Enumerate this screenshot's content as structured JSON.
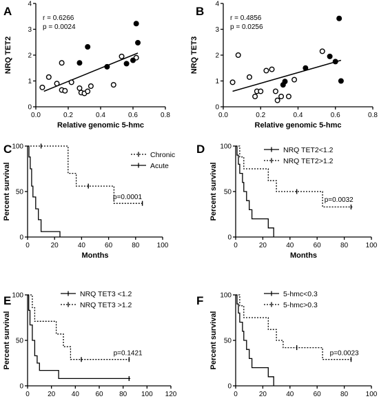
{
  "chart_data": [
    {
      "panel": "A",
      "type": "scatter",
      "xlabel": "Relative genomic 5-hmc",
      "ylabel": "NRQ TET2",
      "xlim": [
        0,
        0.8
      ],
      "ylim": [
        0,
        4
      ],
      "xticks": [
        "0.0",
        "0.2",
        "0.4",
        "0.6",
        "0.8"
      ],
      "yticks": [
        "0",
        "1",
        "2",
        "3",
        "4"
      ],
      "annotations": [
        "r = 0.6266",
        "p = 0.0024"
      ],
      "series": [
        {
          "marker": "open-circle",
          "points": [
            [
              0.04,
              0.75
            ],
            [
              0.08,
              1.15
            ],
            [
              0.13,
              0.9
            ],
            [
              0.16,
              1.7
            ],
            [
              0.16,
              0.65
            ],
            [
              0.18,
              0.62
            ],
            [
              0.22,
              0.95
            ],
            [
              0.27,
              0.72
            ],
            [
              0.28,
              0.55
            ],
            [
              0.3,
              0.52
            ],
            [
              0.32,
              0.6
            ],
            [
              0.34,
              0.8
            ],
            [
              0.48,
              0.85
            ],
            [
              0.53,
              1.95
            ],
            [
              0.62,
              1.9
            ]
          ]
        },
        {
          "marker": "filled-circle",
          "points": [
            [
              0.27,
              1.7
            ],
            [
              0.32,
              2.32
            ],
            [
              0.44,
              1.55
            ],
            [
              0.56,
              1.67
            ],
            [
              0.6,
              1.8
            ],
            [
              0.62,
              3.22
            ],
            [
              0.63,
              2.48
            ]
          ]
        }
      ],
      "trendline": [
        [
          0.05,
          0.6
        ],
        [
          0.63,
          2.08
        ]
      ]
    },
    {
      "panel": "B",
      "type": "scatter",
      "xlabel": "Relative genomic 5-hmc",
      "ylabel": "NRQ TET3",
      "xlim": [
        0,
        0.8
      ],
      "ylim": [
        0,
        4
      ],
      "xticks": [
        "0.0",
        "0.2",
        "0.4",
        "0.6",
        "0.8"
      ],
      "yticks": [
        "0",
        "1",
        "2",
        "3",
        "4"
      ],
      "annotations": [
        "r = 0.4856",
        "p = 0.0256"
      ],
      "series": [
        {
          "marker": "open-circle",
          "points": [
            [
              0.05,
              0.95
            ],
            [
              0.08,
              2.0
            ],
            [
              0.14,
              1.15
            ],
            [
              0.17,
              0.4
            ],
            [
              0.18,
              0.6
            ],
            [
              0.2,
              0.6
            ],
            [
              0.23,
              1.4
            ],
            [
              0.26,
              1.45
            ],
            [
              0.28,
              0.6
            ],
            [
              0.29,
              0.25
            ],
            [
              0.31,
              0.4
            ],
            [
              0.35,
              0.4
            ],
            [
              0.38,
              1.05
            ],
            [
              0.53,
              2.15
            ]
          ]
        },
        {
          "marker": "filled-circle",
          "points": [
            [
              0.32,
              0.85
            ],
            [
              0.33,
              0.98
            ],
            [
              0.44,
              1.5
            ],
            [
              0.57,
              1.95
            ],
            [
              0.6,
              1.75
            ],
            [
              0.62,
              3.42
            ],
            [
              0.63,
              1.0
            ]
          ]
        }
      ],
      "trendline": [
        [
          0.05,
          0.6
        ],
        [
          0.63,
          1.8
        ]
      ]
    },
    {
      "panel": "C",
      "type": "line",
      "xlabel": "Months",
      "ylabel": "Percent survival",
      "xlim": [
        0,
        100
      ],
      "ylim": [
        0,
        100
      ],
      "xticks": [
        "0",
        "20",
        "40",
        "60",
        "80",
        "100"
      ],
      "yticks": [
        "0",
        "50",
        "100"
      ],
      "annotations": [
        "p=0.0001"
      ],
      "legend_position": "top-right",
      "series": [
        {
          "name": "Chronic",
          "style": "dotted",
          "steps": [
            [
              0,
              100
            ],
            [
              30,
              100
            ],
            [
              30,
              70
            ],
            [
              36,
              70
            ],
            [
              36,
              56
            ],
            [
              64,
              56
            ],
            [
              64,
              37
            ],
            [
              86,
              37
            ]
          ],
          "censored": [
            [
              10,
              100
            ],
            [
              45,
              56
            ],
            [
              85,
              37
            ]
          ]
        },
        {
          "name": "Acute",
          "style": "solid",
          "steps": [
            [
              0,
              100
            ],
            [
              1,
              100
            ],
            [
              1,
              88
            ],
            [
              2,
              88
            ],
            [
              2,
              75
            ],
            [
              3,
              75
            ],
            [
              3,
              56
            ],
            [
              4,
              56
            ],
            [
              4,
              44
            ],
            [
              6,
              44
            ],
            [
              6,
              31
            ],
            [
              8,
              31
            ],
            [
              8,
              19
            ],
            [
              10,
              19
            ],
            [
              10,
              6
            ],
            [
              24,
              6
            ],
            [
              24,
              0
            ]
          ],
          "censored": []
        }
      ]
    },
    {
      "panel": "D",
      "type": "line",
      "xlabel": "Months",
      "ylabel": "Percent survival",
      "xlim": [
        0,
        100
      ],
      "ylim": [
        0,
        100
      ],
      "xticks": [
        "0",
        "20",
        "40",
        "60",
        "80",
        "100"
      ],
      "yticks": [
        "0",
        "50",
        "100"
      ],
      "annotations": [
        "p=0.0032"
      ],
      "legend_position": "top-right",
      "series": [
        {
          "name": "NRQ TET2<1.2",
          "style": "solid",
          "steps": [
            [
              0,
              100
            ],
            [
              1,
              100
            ],
            [
              1,
              90
            ],
            [
              2,
              90
            ],
            [
              2,
              80
            ],
            [
              3,
              80
            ],
            [
              3,
              70
            ],
            [
              5,
              70
            ],
            [
              5,
              60
            ],
            [
              6,
              60
            ],
            [
              6,
              50
            ],
            [
              8,
              50
            ],
            [
              8,
              40
            ],
            [
              10,
              40
            ],
            [
              10,
              30
            ],
            [
              12,
              30
            ],
            [
              12,
              20
            ],
            [
              24,
              20
            ],
            [
              24,
              10
            ],
            [
              28,
              10
            ],
            [
              28,
              0
            ]
          ],
          "censored": []
        },
        {
          "name": "NRQ TET2>1.2",
          "style": "dotted",
          "steps": [
            [
              0,
              100
            ],
            [
              3,
              100
            ],
            [
              3,
              88
            ],
            [
              6,
              88
            ],
            [
              6,
              75
            ],
            [
              24,
              75
            ],
            [
              24,
              62
            ],
            [
              30,
              62
            ],
            [
              30,
              50
            ],
            [
              64,
              50
            ],
            [
              64,
              33
            ],
            [
              86,
              33
            ]
          ],
          "censored": [
            [
              45,
              50
            ],
            [
              85,
              33
            ]
          ]
        }
      ]
    },
    {
      "panel": "E",
      "type": "line",
      "xlabel": "Months",
      "ylabel": "Percent survival",
      "xlim": [
        0,
        120
      ],
      "ylim": [
        0,
        100
      ],
      "xticks": [
        "0",
        "20",
        "40",
        "60",
        "80",
        "100",
        "120"
      ],
      "yticks": [
        "0",
        "50",
        "100"
      ],
      "annotations": [
        "p=0.1421"
      ],
      "legend_position": "top-right",
      "series": [
        {
          "name": "NRQ TET3 <1.2",
          "style": "solid",
          "steps": [
            [
              0,
              100
            ],
            [
              1,
              100
            ],
            [
              1,
              83
            ],
            [
              2,
              83
            ],
            [
              2,
              67
            ],
            [
              4,
              67
            ],
            [
              4,
              50
            ],
            [
              6,
              50
            ],
            [
              6,
              33
            ],
            [
              8,
              33
            ],
            [
              8,
              25
            ],
            [
              10,
              25
            ],
            [
              10,
              17
            ],
            [
              26,
              17
            ],
            [
              26,
              8
            ],
            [
              86,
              8
            ]
          ],
          "censored": [
            [
              85,
              8
            ]
          ]
        },
        {
          "name": "NRQ TET3 >1.2",
          "style": "dotted",
          "steps": [
            [
              0,
              100
            ],
            [
              4,
              100
            ],
            [
              4,
              86
            ],
            [
              6,
              86
            ],
            [
              6,
              71
            ],
            [
              24,
              71
            ],
            [
              24,
              57
            ],
            [
              30,
              57
            ],
            [
              30,
              43
            ],
            [
              36,
              43
            ],
            [
              36,
              29
            ],
            [
              86,
              29
            ]
          ],
          "censored": [
            [
              45,
              29
            ],
            [
              85,
              29
            ]
          ]
        }
      ]
    },
    {
      "panel": "F",
      "type": "line",
      "xlabel": "Months",
      "ylabel": "Percent survival",
      "xlim": [
        0,
        100
      ],
      "ylim": [
        0,
        100
      ],
      "xticks": [
        "0",
        "20",
        "40",
        "60",
        "80",
        "100"
      ],
      "yticks": [
        "0",
        "50",
        "100"
      ],
      "annotations": [
        "p=0.0023"
      ],
      "legend_position": "top-right",
      "series": [
        {
          "name": "5-hmc<0.3",
          "style": "solid",
          "steps": [
            [
              0,
              100
            ],
            [
              1,
              100
            ],
            [
              1,
              90
            ],
            [
              2,
              90
            ],
            [
              2,
              80
            ],
            [
              3,
              80
            ],
            [
              3,
              70
            ],
            [
              5,
              70
            ],
            [
              5,
              60
            ],
            [
              6,
              60
            ],
            [
              6,
              50
            ],
            [
              8,
              50
            ],
            [
              8,
              40
            ],
            [
              10,
              40
            ],
            [
              10,
              30
            ],
            [
              12,
              30
            ],
            [
              12,
              20
            ],
            [
              24,
              20
            ],
            [
              24,
              10
            ],
            [
              28,
              10
            ],
            [
              28,
              0
            ]
          ],
          "censored": []
        },
        {
          "name": "5-hmc>0.3",
          "style": "dotted",
          "steps": [
            [
              0,
              100
            ],
            [
              3,
              100
            ],
            [
              3,
              88
            ],
            [
              6,
              88
            ],
            [
              6,
              75
            ],
            [
              24,
              75
            ],
            [
              24,
              62
            ],
            [
              30,
              62
            ],
            [
              30,
              50
            ],
            [
              35,
              50
            ],
            [
              35,
              42
            ],
            [
              64,
              42
            ],
            [
              64,
              29
            ],
            [
              86,
              29
            ]
          ],
          "censored": [
            [
              45,
              42
            ],
            [
              85,
              29
            ]
          ]
        }
      ]
    }
  ]
}
